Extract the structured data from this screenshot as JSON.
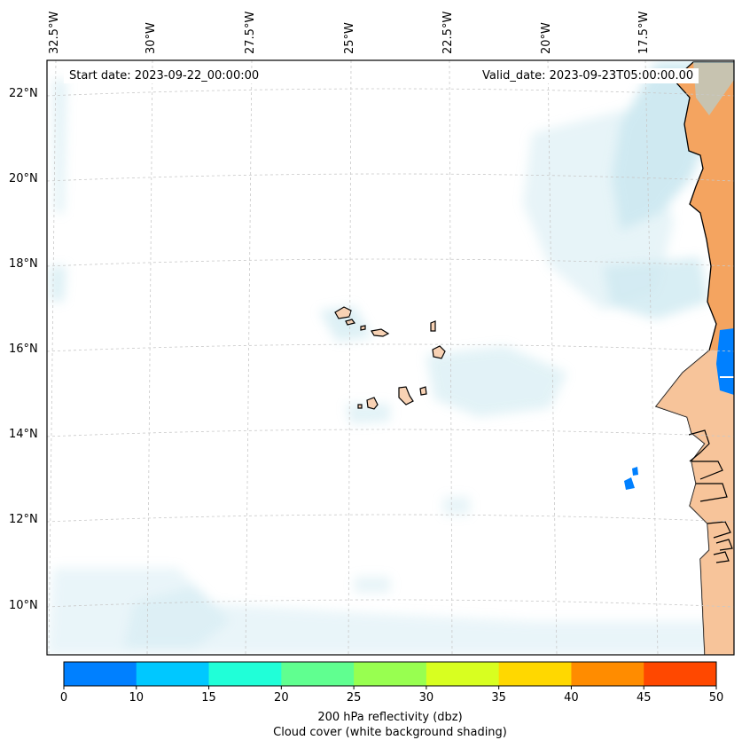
{
  "map": {
    "start_date": "Start date: 2023-09-22_00:00:00",
    "valid_date": "Valid_date: 2023-09-23T05:00:00.00",
    "lat_labels": [
      "22°N",
      "20°N",
      "18°N",
      "16°N",
      "14°N",
      "12°N",
      "10°N"
    ],
    "lon_labels": [
      "32.5°W",
      "30°W",
      "27.5°W",
      "25°W",
      "22.5°W",
      "20°W",
      "17.5°W"
    ],
    "colors": {
      "land": "#f4a460",
      "cloud": "#a8d8e6",
      "coast": "#000000",
      "grid": "#c8c8c8"
    }
  },
  "colorbar": {
    "ticks": [
      "0",
      "10",
      "15",
      "20",
      "25",
      "30",
      "35",
      "40",
      "45",
      "50"
    ],
    "colors": [
      "#0080ff",
      "#00c8ff",
      "#20ffd8",
      "#60ff90",
      "#98ff50",
      "#d8ff20",
      "#ffd800",
      "#ff8c00",
      "#ff4800"
    ],
    "caption_line1": "200 hPa reflectivity (dbz)",
    "caption_line2": "Cloud cover (white background shading)"
  }
}
